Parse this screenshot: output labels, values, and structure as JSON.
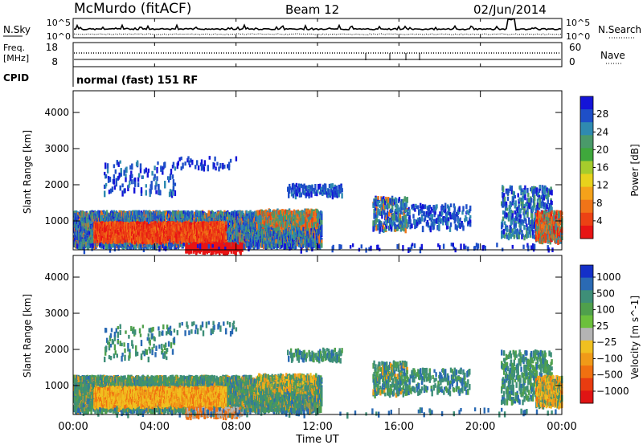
{
  "header": {
    "station": "McMurdo (fitACF)",
    "beam": "Beam 12",
    "date": "02/Jun/2014"
  },
  "status_panel": {
    "left_labels": {
      "nsky": "N.Sky",
      "freq_line1": "Freq.",
      "freq_line2": "[MHz]",
      "cpid": "CPID"
    },
    "right_labels": {
      "nsearch": "N.Search",
      "nave": "Nave"
    },
    "noise_ticks": [
      "10^5",
      "10^0"
    ],
    "freq_ticks": [
      "18",
      "8"
    ],
    "nave_ticks": [
      "60",
      "0"
    ],
    "cpid_text": "normal (fast) 151 RF"
  },
  "chart_data": [
    {
      "type": "heatmap",
      "name": "power",
      "ylabel": "Slant Range [km]",
      "ylim": [
        200,
        4600
      ],
      "y_ticks": [
        "1000",
        "2000",
        "3000",
        "4000"
      ],
      "y_tick_values": [
        1000,
        2000,
        3000,
        4000
      ],
      "colorbar": {
        "label": "Power [dB]",
        "ticks": [
          "28",
          "24",
          "20",
          "16",
          "12",
          "8",
          "4"
        ],
        "tick_values": [
          28,
          24,
          20,
          16,
          12,
          8,
          4
        ],
        "range": [
          0,
          32
        ],
        "colors": [
          "#1414d8",
          "#1e4fc8",
          "#2f8ab0",
          "#4a9a6a",
          "#3fa83c",
          "#a6cc2c",
          "#e8d21c",
          "#f5a21a",
          "#f07418",
          "#ec4214",
          "#e81414"
        ]
      },
      "grid": false
    },
    {
      "type": "heatmap",
      "name": "velocity",
      "ylabel": "Slant Range [km]",
      "ylim": [
        200,
        4600
      ],
      "y_ticks": [
        "1000",
        "2000",
        "3000",
        "4000"
      ],
      "y_tick_values": [
        1000,
        2000,
        3000,
        4000
      ],
      "colorbar": {
        "label": "Velocity [m s^-1]",
        "ticks": [
          "1000",
          "500",
          "100",
          "25",
          "−25",
          "−100",
          "−500",
          "−1000"
        ],
        "colors": [
          "#1430c8",
          "#2a6ab4",
          "#3e8f78",
          "#4fa04c",
          "#6cc03c",
          "#b4b4b4",
          "#f0c020",
          "#f09a18",
          "#f07010",
          "#e83c10",
          "#e01414"
        ]
      },
      "grid": false
    }
  ],
  "time_axis": {
    "label": "Time UT",
    "ticks": [
      "00:00",
      "04:00",
      "08:00",
      "12:00",
      "16:00",
      "20:00",
      "00:00"
    ],
    "tick_hours": [
      0,
      4,
      8,
      12,
      16,
      20,
      24
    ]
  }
}
